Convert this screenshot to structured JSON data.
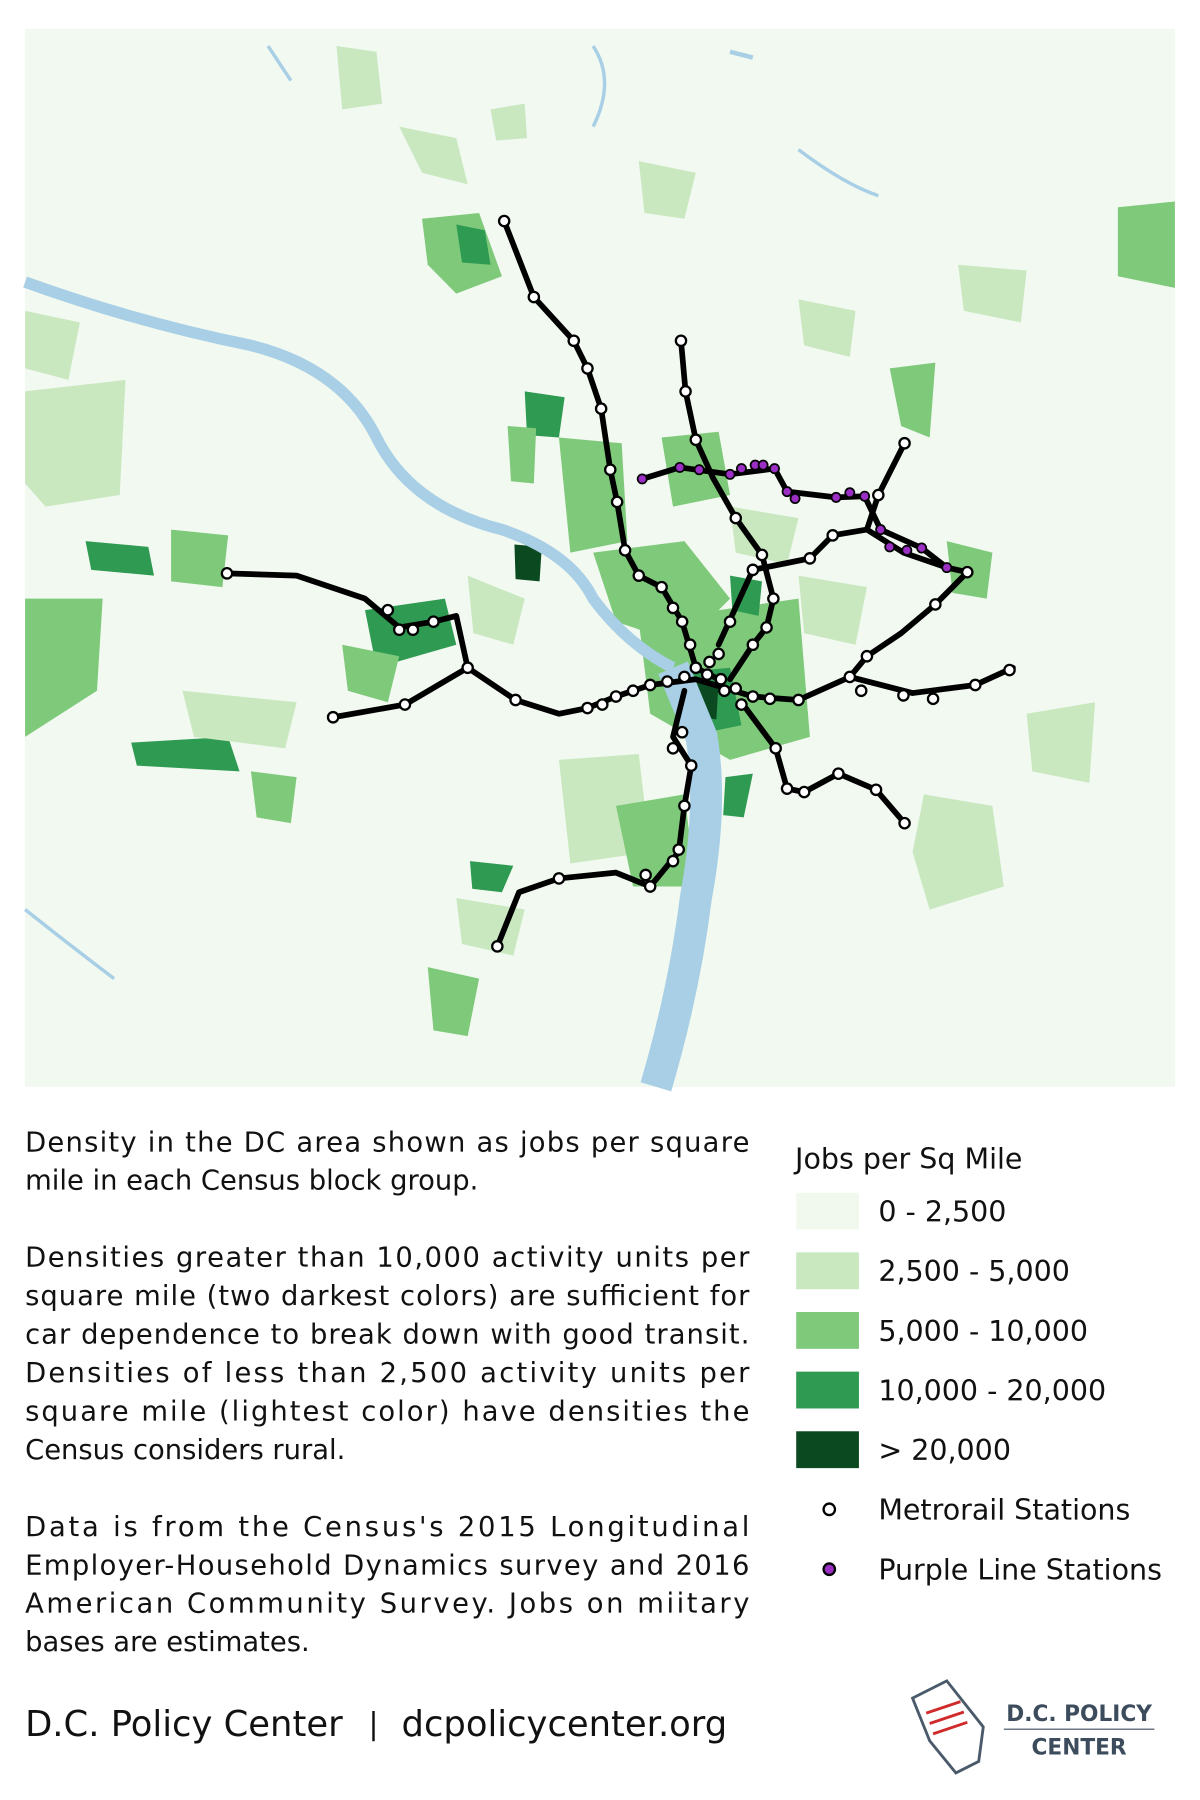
{
  "description": {
    "paragraphs": [
      [
        "Density in the DC area shown as jobs per square",
        "mile in each Census block group."
      ],
      [
        "Densities greater than 10,000 activity units per",
        "square mile (two darkest colors) are sufficient for",
        "car dependence to break down with good transit.",
        "Densities of less than 2,500 activity units per",
        "square mile (lightest color) have densities the",
        "Census considers rural."
      ],
      [
        "Data is from the Census's 2015 Longitudinal",
        "Employer-Household Dynamics survey and 2016",
        "American Community Survey.  Jobs on miitary",
        "bases are estimates."
      ]
    ]
  },
  "legend": {
    "title": "Jobs per Sq Mile",
    "density_classes": [
      {
        "label": "0 - 2,500",
        "color": "#f1f9ee"
      },
      {
        "label": "2,500 - 5,000",
        "color": "#c9e8c0"
      },
      {
        "label": "5,000 - 10,000",
        "color": "#7fc97b"
      },
      {
        "label": "10,000 - 20,000",
        "color": "#2f9a52"
      },
      {
        "label": "> 20,000",
        "color": "#0b4a20"
      }
    ],
    "stations": [
      {
        "label": "Metrorail Stations",
        "color": "#ffffff"
      },
      {
        "label": "Purple Line Stations",
        "color": "#9b2fc4"
      }
    ]
  },
  "footer": {
    "organization": "D.C. Policy Center",
    "separator": "|",
    "website": "dcpolicycenter.org",
    "logo_line_1": "D.C. POLICY",
    "logo_line_2": "CENTER"
  }
}
